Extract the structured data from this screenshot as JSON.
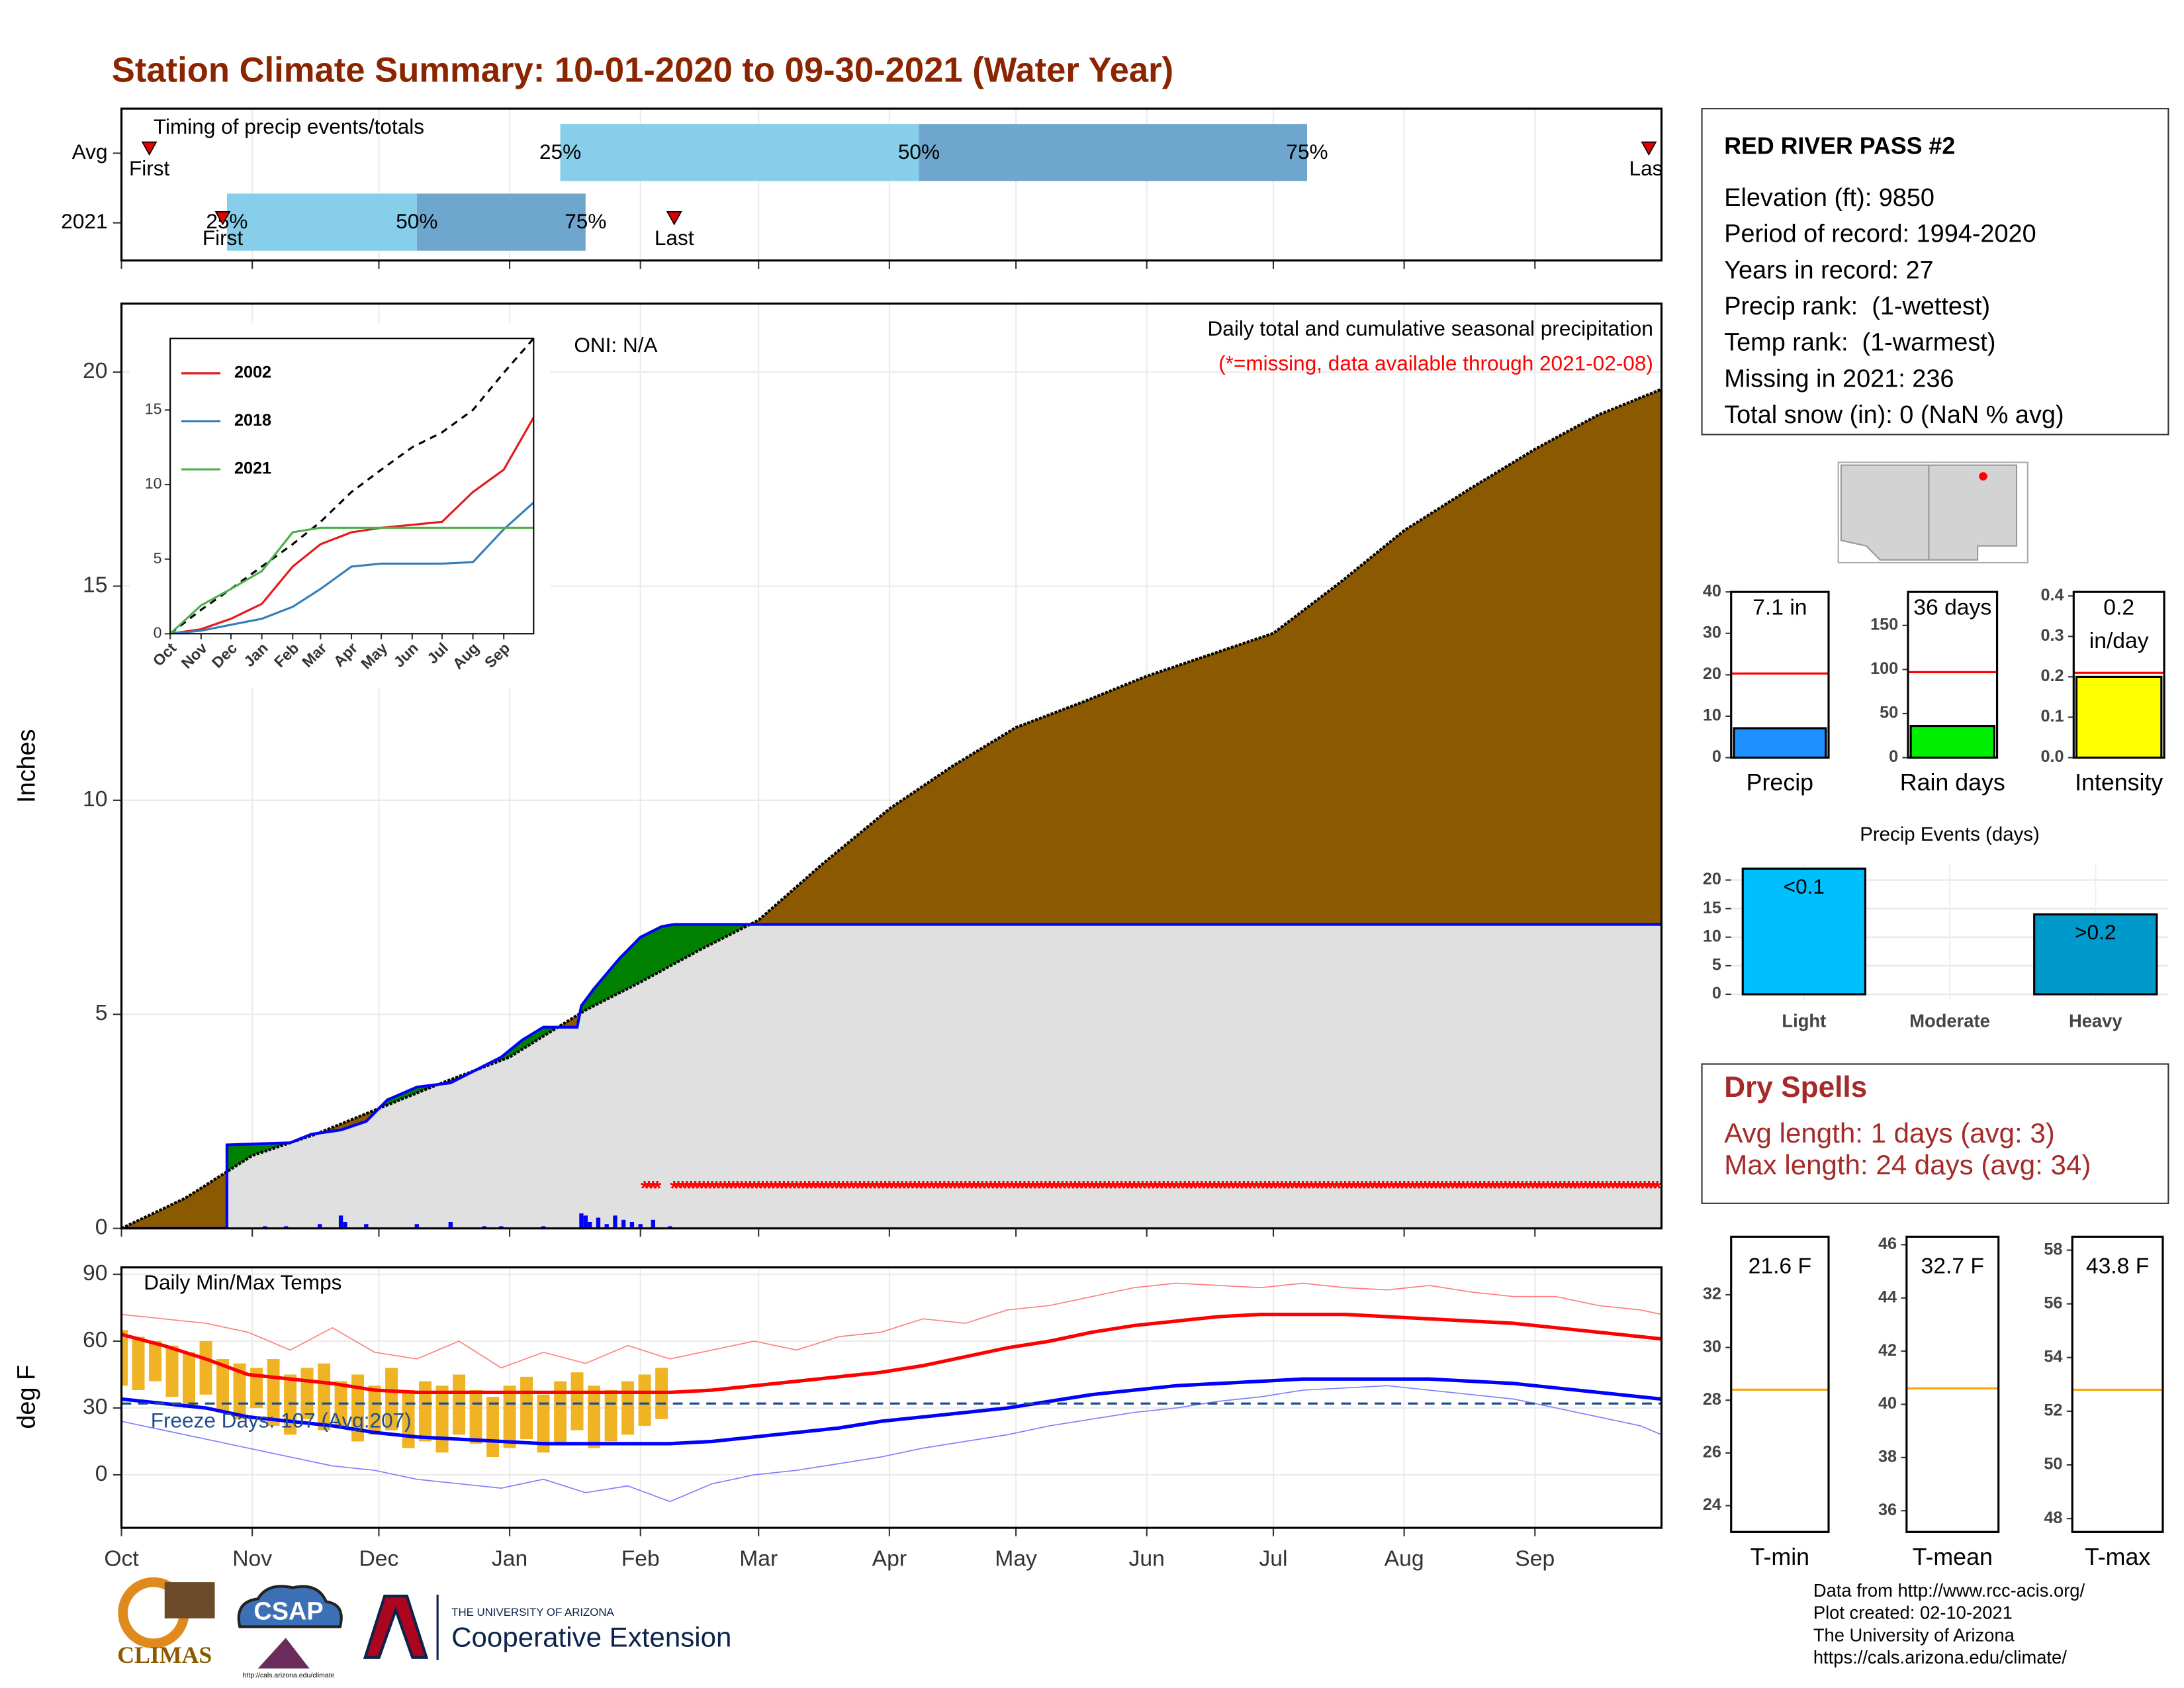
{
  "title": "Station Climate Summary: 10-01-2020 to 09-30-2021 (Water Year)",
  "chart_data": [
    {
      "type": "timing",
      "title": "Timing of precip events/totals",
      "xlim": [
        0,
        365
      ],
      "categories": [
        "Avg",
        "2021"
      ],
      "first": [
        6.6,
        24
      ],
      "p25": [
        104,
        25
      ],
      "p50": [
        189,
        70
      ],
      "p75": [
        281,
        110
      ],
      "last": [
        362,
        131
      ],
      "marker_labels": {
        "first": "First",
        "last": "Last",
        "p25": "25%",
        "p50": "50%",
        "p75": "75%"
      },
      "colors": {
        "early": "#87ceeb",
        "late": "#6ea6cd",
        "marker": "#e00000"
      }
    },
    {
      "type": "area",
      "title": "Daily total and cumulative seasonal precipitation",
      "subtitle": "(*=missing, data available through 2021-02-08)",
      "annotation": "ONI: N/A",
      "ylabel": "Inches",
      "xlim": [
        0,
        365
      ],
      "ylim": [
        0,
        21.6
      ],
      "yticks": [
        0,
        5,
        10,
        15,
        20
      ],
      "grid": true,
      "series": [
        {
          "x": [
            0,
            15,
            31,
            46,
            61,
            76,
            92,
            110,
            123,
            137,
            151,
            166,
            182,
            197,
            212,
            228,
            243,
            258,
            273,
            289,
            304,
            320,
            335,
            350,
            365
          ],
          "values": [
            0,
            0.7,
            1.7,
            2.2,
            2.8,
            3.4,
            4.0,
            5.1,
            5.75,
            6.5,
            7.2,
            8.5,
            9.8,
            10.8,
            11.7,
            12.3,
            12.9,
            13.4,
            13.9,
            15.1,
            16.3,
            17.3,
            18.2,
            19.0,
            19.6
          ],
          "color": "#8b5a00"
        },
        {
          "x": [
            0,
            25,
            25,
            40,
            45,
            52,
            58,
            63,
            70,
            78,
            82,
            90,
            95,
            100,
            108,
            109,
            112,
            118,
            123,
            128,
            131,
            365
          ],
          "values": [
            0,
            0,
            1.95,
            2.0,
            2.2,
            2.3,
            2.5,
            3.0,
            3.3,
            3.4,
            3.6,
            4.0,
            4.4,
            4.7,
            4.7,
            5.2,
            5.6,
            6.3,
            6.8,
            7.05,
            7.1,
            7.1
          ],
          "color": "#0000ff",
          "above_color": "#008000",
          "below_color": "#e0e0e0"
        }
      ],
      "daily": {
        "x": [
          34,
          39,
          47,
          52,
          53,
          58,
          70,
          78,
          86,
          90,
          100,
          109,
          110,
          111,
          113,
          115,
          117,
          119,
          121,
          123,
          126,
          130
        ],
        "values": [
          0.05,
          0.05,
          0.1,
          0.3,
          0.15,
          0.1,
          0.1,
          0.15,
          0.05,
          0.05,
          0.05,
          0.35,
          0.3,
          0.15,
          0.25,
          0.1,
          0.3,
          0.2,
          0.15,
          0.1,
          0.2,
          0.05
        ],
        "color": "#0000ff"
      },
      "missing": {
        "symbol": "*",
        "ranges": [
          [
            124,
            127
          ],
          [
            131,
            364
          ]
        ],
        "value": 1,
        "color": "#ff0000"
      }
    },
    {
      "type": "line",
      "xlim": [
        0,
        365
      ],
      "ylim": [
        0,
        19.8
      ],
      "yticks": [
        0,
        5,
        10,
        15
      ],
      "xticks": [
        {
          "value": 0,
          "label": "Oct"
        },
        {
          "value": 31,
          "label": "Nov"
        },
        {
          "value": 61,
          "label": "Dec"
        },
        {
          "value": 92,
          "label": "Jan"
        },
        {
          "value": 123,
          "label": "Feb"
        },
        {
          "value": 151,
          "label": "Mar"
        },
        {
          "value": 182,
          "label": "Apr"
        },
        {
          "value": 212,
          "label": "May"
        },
        {
          "value": 243,
          "label": "Jun"
        },
        {
          "value": 273,
          "label": "Jul"
        },
        {
          "value": 304,
          "label": "Aug"
        },
        {
          "value": 335,
          "label": "Sep"
        }
      ],
      "x": [
        0,
        31,
        61,
        92,
        123,
        151,
        182,
        212,
        243,
        273,
        304,
        335,
        365
      ],
      "series": [
        {
          "name": "2002",
          "color": "#e41a1c",
          "values": [
            0,
            0.3,
            1.0,
            2.0,
            4.5,
            6.0,
            6.8,
            7.1,
            7.3,
            7.5,
            9.5,
            11.0,
            14.5
          ]
        },
        {
          "name": "2018",
          "color": "#377eb8",
          "values": [
            0,
            0.2,
            0.6,
            1.0,
            1.8,
            3.0,
            4.5,
            4.7,
            4.7,
            4.7,
            4.8,
            7.0,
            8.8
          ]
        },
        {
          "name": "2021",
          "color": "#4daf4a",
          "values": [
            0,
            1.9,
            3.0,
            4.2,
            6.8,
            7.1,
            7.1,
            7.1,
            7.1,
            7.1,
            7.1,
            7.1,
            7.1
          ]
        }
      ],
      "reference": {
        "color": "#000000",
        "values": [
          0,
          1.6,
          3.0,
          4.5,
          6.0,
          7.5,
          9.5,
          11.0,
          12.5,
          13.5,
          15.0,
          17.5,
          19.8
        ]
      },
      "legend": "top-left"
    },
    {
      "type": "temps",
      "title": "Daily Min/Max Temps",
      "ylabel": "deg F",
      "annotation": "Freeze Days: 107 (Avg:207)",
      "xlim": [
        0,
        365
      ],
      "ylim": [
        -23.8,
        93.1
      ],
      "yticks": [
        0,
        30,
        60,
        90
      ],
      "grid": true,
      "xticks": [
        {
          "value": 0,
          "label": "Oct"
        },
        {
          "value": 31,
          "label": "Nov"
        },
        {
          "value": 61,
          "label": "Dec"
        },
        {
          "value": 92,
          "label": "Jan"
        },
        {
          "value": 123,
          "label": "Feb"
        },
        {
          "value": 151,
          "label": "Mar"
        },
        {
          "value": 182,
          "label": "Apr"
        },
        {
          "value": 212,
          "label": "May"
        },
        {
          "value": 243,
          "label": "Jun"
        },
        {
          "value": 273,
          "label": "Jul"
        },
        {
          "value": 304,
          "label": "Aug"
        },
        {
          "value": 335,
          "label": "Sep"
        }
      ],
      "x": [
        0,
        10,
        20,
        30,
        40,
        50,
        60,
        70,
        80,
        90,
        100,
        110,
        120,
        130,
        140,
        150,
        160,
        170,
        180,
        190,
        200,
        210,
        220,
        230,
        240,
        250,
        260,
        270,
        280,
        290,
        300,
        310,
        320,
        330,
        340,
        350,
        360,
        365
      ],
      "series": [
        {
          "color": "#ff8080",
          "width": 0.8,
          "values": [
            72,
            70,
            68,
            64,
            56,
            66,
            55,
            52,
            60,
            48,
            55,
            50,
            58,
            52,
            56,
            60,
            56,
            62,
            64,
            70,
            68,
            74,
            76,
            80,
            84,
            86,
            85,
            84,
            86,
            84,
            83,
            85,
            82,
            80,
            80,
            76,
            74,
            72
          ]
        },
        {
          "color": "#8080ff",
          "width": 0.8,
          "values": [
            24,
            20,
            16,
            12,
            8,
            4,
            2,
            -2,
            -4,
            -6,
            -2,
            -8,
            -5,
            -12,
            -4,
            0,
            2,
            5,
            8,
            12,
            15,
            18,
            22,
            25,
            28,
            30,
            33,
            35,
            38,
            39,
            40,
            38,
            36,
            34,
            30,
            26,
            22,
            18
          ]
        },
        {
          "color": "#ff0000",
          "width": 2.5,
          "values": [
            63,
            58,
            52,
            45,
            43,
            41,
            38,
            37,
            37,
            37,
            37,
            37,
            37,
            37,
            38,
            40,
            42,
            44,
            46,
            49,
            53,
            57,
            60,
            64,
            67,
            69,
            71,
            72,
            72,
            72,
            71,
            70,
            69,
            68,
            66,
            64,
            62,
            61
          ]
        },
        {
          "color": "#0000ff",
          "width": 2.5,
          "values": [
            34,
            32,
            30,
            26,
            24,
            22,
            19,
            17,
            16,
            15,
            14,
            14,
            14,
            14,
            15,
            17,
            19,
            21,
            24,
            26,
            28,
            30,
            33,
            36,
            38,
            40,
            41,
            42,
            43,
            43,
            43,
            43,
            42,
            41,
            39,
            37,
            35,
            34
          ]
        }
      ],
      "daily": {
        "color": "#f0b323",
        "x": [
          0,
          4,
          8,
          12,
          16,
          20,
          24,
          28,
          32,
          36,
          40,
          44,
          48,
          52,
          56,
          60,
          64,
          68,
          72,
          76,
          80,
          84,
          88,
          92,
          96,
          100,
          104,
          108,
          112,
          116,
          120,
          124,
          128
        ],
        "lows": [
          40,
          38,
          42,
          35,
          30,
          36,
          28,
          25,
          30,
          22,
          18,
          25,
          20,
          22,
          15,
          18,
          20,
          12,
          15,
          10,
          18,
          14,
          8,
          12,
          16,
          10,
          14,
          20,
          12,
          15,
          18,
          22,
          25
        ],
        "highs": [
          65,
          62,
          60,
          58,
          55,
          60,
          52,
          50,
          48,
          52,
          45,
          48,
          50,
          42,
          45,
          40,
          48,
          38,
          42,
          40,
          45,
          38,
          35,
          40,
          44,
          36,
          42,
          46,
          40,
          38,
          42,
          45,
          48
        ]
      },
      "freeze": {
        "value": 32,
        "color": "#1f4e8c"
      }
    },
    {
      "type": "gauge",
      "category": "Precip",
      "value": 7.1,
      "value_label": [
        "7.1 in"
      ],
      "reference": 20.3,
      "ylim": [
        0,
        40
      ],
      "yticks": [
        0,
        10,
        20,
        30,
        40
      ],
      "color": "#1e90ff",
      "reference_color": "#ff0000"
    },
    {
      "type": "gauge",
      "category": "Rain days",
      "value": 36,
      "value_label": [
        "36 days"
      ],
      "reference": 97,
      "ylim": [
        0,
        188
      ],
      "yticks": [
        0,
        50,
        100,
        150
      ],
      "color": "#00ee00",
      "reference_color": "#ff0000"
    },
    {
      "type": "gauge",
      "category": "Intensity",
      "value": 0.2,
      "value_label": [
        "0.2",
        "in/day"
      ],
      "reference": 0.21,
      "ylim": [
        0,
        0.41
      ],
      "yticks": [
        {
          "value": 0,
          "label": "0.0"
        },
        0.1,
        0.2,
        0.3,
        0.4
      ],
      "color": "#ffff00",
      "reference_color": "#ff0000"
    },
    {
      "type": "bar",
      "title": "Precip Events (days)",
      "categories": [
        "Light",
        "Moderate",
        "Heavy"
      ],
      "values": [
        22,
        0,
        14
      ],
      "bar_labels": [
        "<0.1",
        null,
        ">0.2"
      ],
      "colors": [
        "#00bfff",
        "#00a9e0",
        "#0099cc"
      ],
      "ylim": [
        -1,
        22.9
      ],
      "yticks": [
        0,
        5,
        10,
        15,
        20
      ],
      "grid": true
    },
    {
      "type": "gauge",
      "category": "T-min",
      "value": 21.6,
      "value_label": [
        "21.6 F"
      ],
      "reference": 28.4,
      "ylim": [
        23.0,
        34.2
      ],
      "yticks": [
        24,
        26,
        28,
        30,
        32
      ],
      "color": "#87cefa",
      "reference_color": "#ffa500"
    },
    {
      "type": "gauge",
      "category": "T-mean",
      "value": 32.7,
      "value_label": [
        "32.7 F"
      ],
      "reference": 40.6,
      "ylim": [
        35.2,
        46.3
      ],
      "yticks": [
        36,
        38,
        40,
        42,
        44,
        46
      ],
      "color": "#87cefa",
      "reference_color": "#ffa500"
    },
    {
      "type": "gauge",
      "category": "T-max",
      "value": 43.8,
      "value_label": [
        "43.8 F"
      ],
      "reference": 52.8,
      "ylim": [
        47.5,
        58.5
      ],
      "yticks": [
        48,
        50,
        52,
        54,
        56,
        58
      ],
      "color": "#87cefa",
      "reference_color": "#ffa500"
    }
  ],
  "station": {
    "name": "RED RIVER PASS #2",
    "lines": [
      "Elevation (ft): 9850",
      "Period of record: 1994-2020",
      "Years in record: 27",
      "Precip rank:  (1-wettest)",
      "Temp rank:  (1-warmest)",
      "Missing in 2021: 236",
      "Total snow (in): 0 (NaN % avg)"
    ]
  },
  "dry_spells": {
    "title": "Dry Spells",
    "lines": [
      "Avg length: 1 days (avg: 3)",
      "Max length: 24 days (avg: 34)"
    ]
  },
  "credits": [
    "Data from http://www.rcc-acis.org/",
    "Plot created: 02-10-2021",
    "The University of Arizona",
    "https://cals.arizona.edu/climate/"
  ],
  "logos": {
    "climas": "CLIMAS",
    "csap": "CSAP",
    "csap_url": "http://cals.arizona.edu/climate",
    "university": "THE UNIVERSITY OF ARIZONA",
    "extension": "Cooperative Extension"
  }
}
